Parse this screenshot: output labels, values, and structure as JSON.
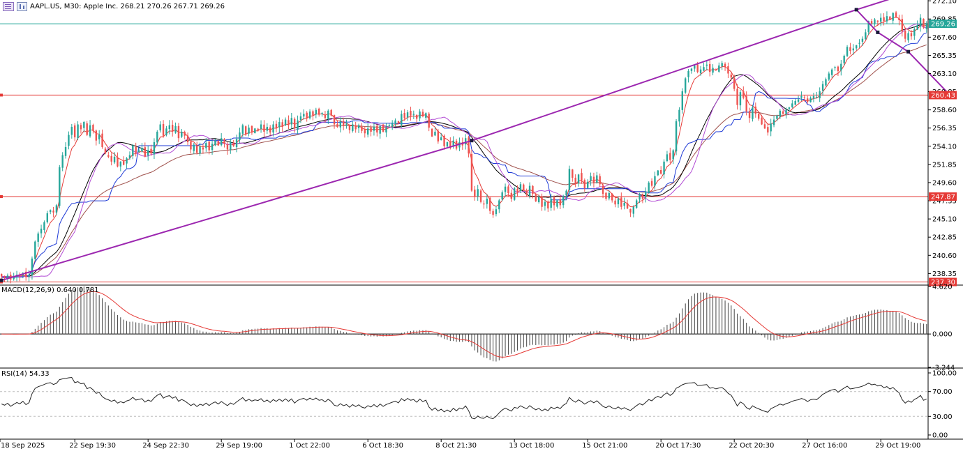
{
  "header": {
    "symbol_line": "AAPL.US, M30:  Apple Inc.  268.21 270.26 267.71 269.26"
  },
  "colors": {
    "bull": "#26a69a",
    "bear": "#ef5350",
    "trendline": "#9c27b0",
    "hline": "#e53935",
    "bid_line": "#26a69a",
    "ma_black": "#000000",
    "ma_red": "#e53935",
    "ma_brown": "#a0524d",
    "ma_blue": "#1e3ad6",
    "ma_violet": "#b24bd4"
  },
  "chart_data": [
    {
      "type": "candlestick",
      "title": "",
      "timeframe": "M30",
      "ylim": [
        237.0,
        272.2
      ],
      "y_ticks": [
        "272.10",
        "269.85",
        "267.60",
        "265.35",
        "263.10",
        "260.85",
        "258.60",
        "256.35",
        "254.10",
        "251.85",
        "249.60",
        "247.35",
        "245.10",
        "242.85",
        "240.60",
        "238.35"
      ],
      "x_ticks": [
        "18 Sep 2025",
        "22 Sep 19:30",
        "24 Sep 22:30",
        "29 Sep 19:00",
        "1 Oct 22:00",
        "6 Oct 18:30",
        "8 Oct 21:30",
        "13 Oct 18:00",
        "15 Oct 21:00",
        "20 Oct 17:30",
        "22 Oct 20:30",
        "27 Oct 16:00",
        "29 Oct 19:00"
      ],
      "last_price": {
        "value": 269.26,
        "label": "269.26"
      },
      "horizontal_lines": [
        {
          "value": 260.43,
          "label": "260.43"
        },
        {
          "value": 247.87,
          "label": "247.87"
        },
        {
          "value": 237.3,
          "label": "237.30"
        }
      ],
      "path_points": [
        {
          "t": 0,
          "price": 237.5
        },
        {
          "t": 154,
          "price": 254.8
        },
        {
          "t": 280,
          "price": 271.0
        },
        {
          "t": 287,
          "price": 268.2
        },
        {
          "t": 297,
          "price": 265.8
        },
        {
          "t": 311,
          "price": 260.3
        }
      ],
      "closes": [
        238.0,
        237.8,
        238.1,
        237.6,
        237.9,
        238.2,
        238.0,
        238.4,
        237.9,
        238.2,
        240.2,
        242.3,
        243.3,
        243.9,
        244.7,
        245.8,
        246.2,
        245.9,
        246.8,
        251.5,
        253.0,
        254.0,
        255.5,
        256.5,
        255.2,
        256.8,
        256.2,
        257.1,
        255.5,
        256.7,
        256.0,
        254.8,
        255.5,
        254.0,
        253.2,
        252.8,
        252.2,
        252.8,
        251.6,
        252.2,
        251.8,
        252.6,
        253.0,
        254.2,
        253.3,
        253.6,
        253.9,
        252.8,
        253.6,
        253.2,
        254.6,
        255.9,
        256.8,
        255.4,
        256.3,
        256.7,
        255.9,
        256.6,
        255.1,
        255.9,
        255.4,
        254.6,
        253.7,
        254.3,
        253.3,
        254.1,
        253.7,
        254.5,
        253.6,
        254.4,
        254.9,
        254.2,
        255.1,
        254.4,
        253.7,
        254.6,
        254.1,
        255.0,
        255.8,
        256.7,
        255.6,
        256.4,
        255.8,
        256.3,
        256.1,
        256.8,
        255.9,
        256.5,
        255.8,
        256.8,
        256.3,
        257.1,
        256.5,
        257.4,
        256.7,
        257.6,
        256.3,
        257.3,
        257.8,
        258.1,
        257.6,
        258.4,
        257.9,
        258.6,
        258.0,
        258.2,
        257.6,
        258.5,
        257.9,
        256.8,
        256.5,
        257.2,
        256.6,
        256.9,
        256.1,
        256.8,
        256.2,
        256.7,
        256.0,
        255.7,
        256.3,
        255.9,
        256.5,
        255.8,
        256.6,
        255.9,
        256.4,
        256.7,
        257.0,
        257.3,
        256.9,
        258.1,
        257.6,
        258.3,
        257.9,
        258.1,
        257.5,
        258.4,
        257.8,
        258.2,
        256.4,
        255.3,
        255.9,
        254.7,
        255.2,
        254.1,
        254.6,
        253.9,
        254.8,
        253.8,
        254.6,
        254.2,
        255.1,
        253.2,
        248.6,
        247.9,
        248.8,
        247.2,
        246.9,
        247.6,
        246.1,
        245.6,
        246.3,
        247.4,
        248.4,
        249.1,
        248.3,
        247.6,
        248.9,
        248.5,
        249.4,
        248.7,
        248.1,
        249.2,
        248.2,
        247.3,
        247.8,
        246.6,
        247.2,
        246.4,
        247.6,
        246.8,
        247.4,
        246.8,
        247.9,
        248.6,
        251.3,
        250.2,
        249.5,
        250.6,
        249.9,
        248.9,
        249.7,
        250.4,
        249.6,
        250.5,
        249.4,
        248.2,
        247.6,
        248.3,
        247.4,
        246.9,
        247.6,
        246.6,
        247.1,
        246.4,
        245.9,
        246.6,
        247.4,
        248.1,
        247.6,
        248.5,
        249.6,
        249.2,
        250.4,
        251.1,
        250.7,
        252.2,
        253.1,
        252.4,
        253.6,
        257.2,
        258.6,
        260.9,
        262.5,
        263.4,
        263.7,
        264.1,
        263.3,
        263.6,
        263.9,
        264.2,
        263.3,
        263.8,
        263.5,
        264.1,
        264.4,
        263.9,
        263.1,
        262.6,
        261.2,
        259.2,
        260.8,
        260.1,
        258.4,
        257.6,
        258.9,
        258.1,
        257.5,
        256.8,
        256.3,
        255.8,
        256.9,
        257.4,
        257.9,
        258.5,
        258.1,
        258.6,
        258.9,
        259.4,
        259.7,
        259.9,
        260.3,
        260.1,
        259.6,
        260.1,
        260.3,
        260.2,
        260.9,
        261.8,
        262.4,
        263.1,
        263.6,
        263.9,
        263.4,
        264.3,
        265.3,
        266.4,
        265.9,
        266.2,
        266.6,
        266.9,
        267.4,
        268.2,
        269.6,
        269.3,
        269.8,
        269.5,
        270.0,
        269.6,
        270.2,
        269.8,
        270.6,
        270.1,
        269.7,
        268.3,
        267.4,
        268.1,
        267.7,
        268.6,
        269.1,
        270.0,
        268.8,
        269.26
      ]
    },
    {
      "type": "histogram",
      "title": "MACD(12,26,9) 0.640 0.781",
      "ylim": [
        -3.244,
        4.62
      ],
      "y_ticks": [
        "4.620",
        "0.000",
        "-3.244"
      ]
    },
    {
      "type": "line",
      "title": "RSI(14) 54.33",
      "ylim": [
        0,
        100
      ],
      "y_ticks": [
        "100.00",
        "70.00",
        "30.00",
        "0.00"
      ]
    }
  ]
}
